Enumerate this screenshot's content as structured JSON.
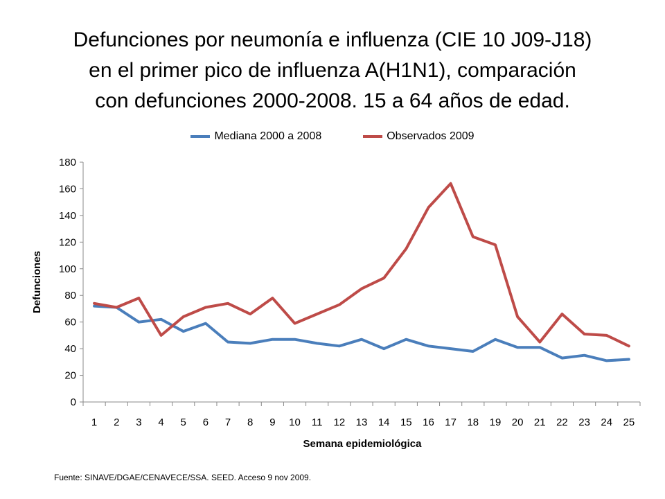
{
  "title": "Defunciones por neumonía e influenza (CIE 10 J09-J18)\nen el primer pico de influenza A(H1N1), comparación\ncon defunciones 2000-2008. 15 a 64 años de edad.",
  "source": "Fuente: SINAVE/DGAE/CENAVECE/SSA.  SEED. Acceso 9 nov 2009.",
  "chart_data": {
    "type": "line",
    "xlabel": "Semana epidemiológica",
    "ylabel": "Defunciones",
    "ylim": [
      0,
      180
    ],
    "yticks": [
      0,
      20,
      40,
      60,
      80,
      100,
      120,
      140,
      160,
      180
    ],
    "x": [
      "1",
      "2",
      "3",
      "4",
      "5",
      "6",
      "7",
      "8",
      "9",
      "10",
      "11",
      "12",
      "13",
      "14",
      "15",
      "16",
      "17",
      "18",
      "19",
      "20",
      "21",
      "22",
      "23",
      "24",
      "25"
    ],
    "legend_position": "top",
    "grid": false,
    "series": [
      {
        "name": "Mediana 2000 a 2008",
        "color": "#4a7ebb",
        "values": [
          72,
          71,
          60,
          62,
          53,
          59,
          45,
          44,
          47,
          47,
          44,
          42,
          47,
          40,
          47,
          42,
          40,
          38,
          47,
          41,
          41,
          33,
          35,
          31,
          32
        ]
      },
      {
        "name": "Observados 2009",
        "color": "#be4b48",
        "values": [
          74,
          71,
          78,
          50,
          64,
          71,
          74,
          66,
          78,
          59,
          66,
          73,
          85,
          93,
          115,
          146,
          164,
          124,
          118,
          64,
          45,
          66,
          51,
          50,
          42
        ]
      }
    ]
  }
}
